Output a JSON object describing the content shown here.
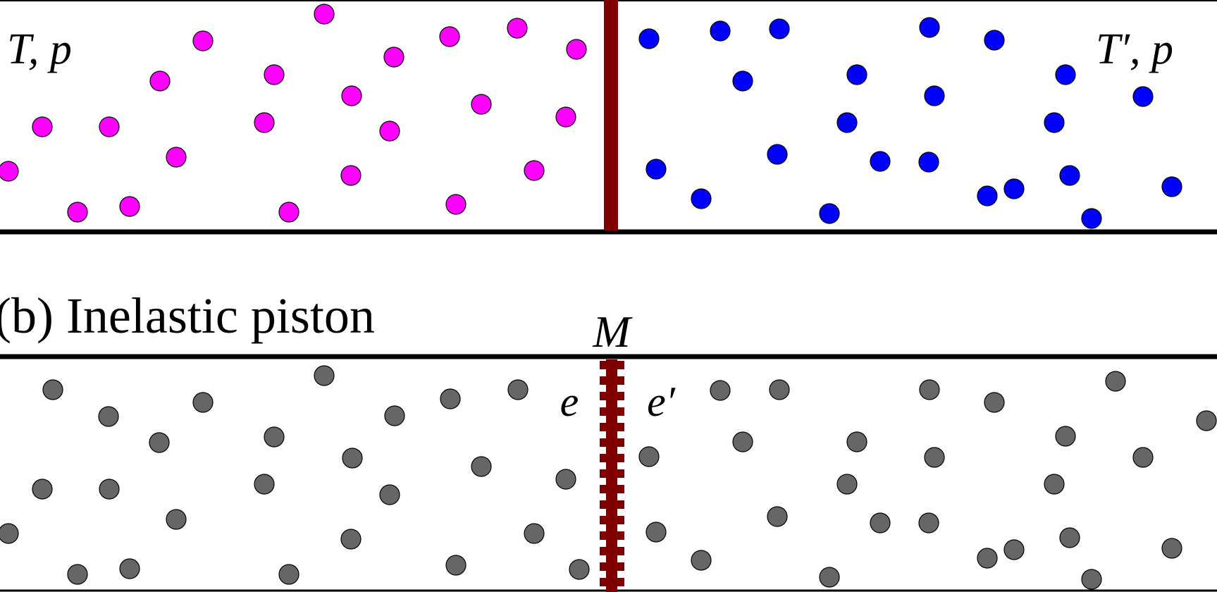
{
  "panel_a": {
    "left_label": "T, p",
    "right_label": "T′, p",
    "left_particle_color": "#ff00ff",
    "right_particle_color": "#0000ff",
    "piston_color": "#800000"
  },
  "panel_b": {
    "caption": "(b) Inelastic piston",
    "mass_label": "M",
    "left_restitution_label": "e",
    "right_restitution_label": "e′",
    "particle_color": "#666666",
    "piston_color": "#800000"
  }
}
